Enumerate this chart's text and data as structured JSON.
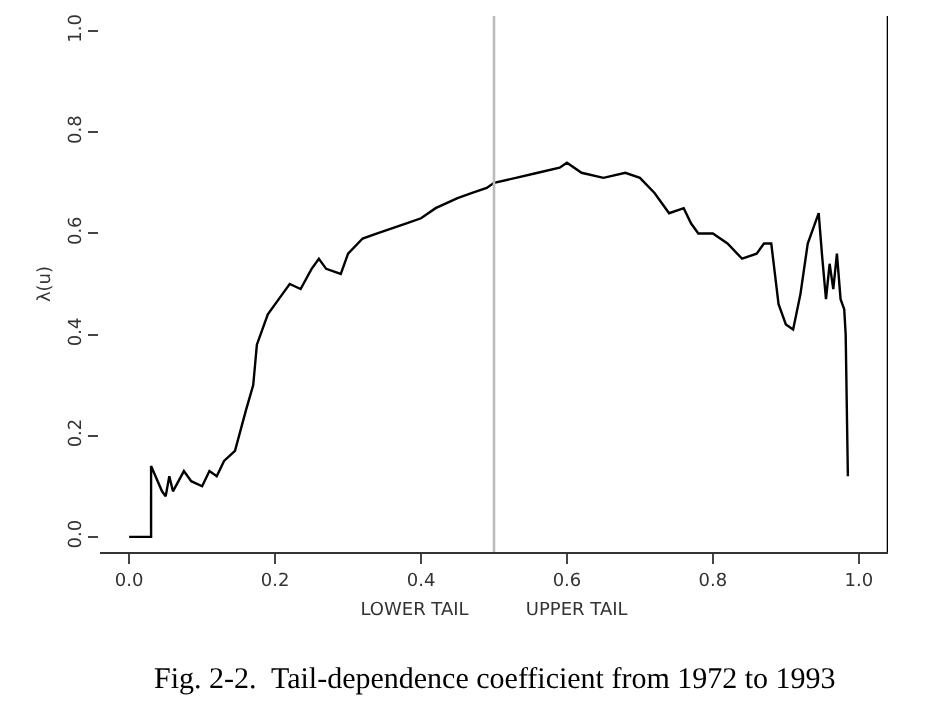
{
  "chart_data": {
    "type": "line",
    "title": "Fig. 2-2.  Tail-dependence coefficient from 1972 to 1993",
    "xlabel": "LOWER TAIL          UPPER TAIL",
    "ylabel": "λ(u)",
    "series": [
      {
        "color": "#000000",
        "x": [
          0,
          0.03,
          0.03,
          0.045,
          0.05,
          0.055,
          0.06,
          0.075,
          0.085,
          0.1,
          0.11,
          0.12,
          0.13,
          0.145,
          0.16,
          0.17,
          0.175,
          0.19,
          0.21,
          0.22,
          0.235,
          0.25,
          0.26,
          0.27,
          0.29,
          0.3,
          0.32,
          0.34,
          0.36,
          0.38,
          0.4,
          0.42,
          0.45,
          0.47,
          0.49,
          0.5,
          0.53,
          0.56,
          0.59,
          0.6,
          0.62,
          0.65,
          0.68,
          0.7,
          0.72,
          0.74,
          0.76,
          0.77,
          0.78,
          0.8,
          0.82,
          0.84,
          0.86,
          0.87,
          0.88,
          0.89,
          0.9,
          0.91,
          0.92,
          0.93,
          0.945,
          0.95,
          0.955,
          0.96,
          0.965,
          0.97,
          0.975,
          0.98,
          0.982,
          0.985
        ],
        "values": [
          0,
          0,
          0.14,
          0.09,
          0.08,
          0.12,
          0.09,
          0.13,
          0.11,
          0.1,
          0.13,
          0.12,
          0.15,
          0.17,
          0.25,
          0.3,
          0.38,
          0.44,
          0.48,
          0.5,
          0.49,
          0.53,
          0.55,
          0.53,
          0.52,
          0.56,
          0.59,
          0.6,
          0.61,
          0.62,
          0.63,
          0.65,
          0.67,
          0.68,
          0.69,
          0.7,
          0.71,
          0.72,
          0.73,
          0.74,
          0.72,
          0.71,
          0.72,
          0.71,
          0.68,
          0.64,
          0.65,
          0.62,
          0.6,
          0.6,
          0.58,
          0.55,
          0.56,
          0.58,
          0.58,
          0.46,
          0.42,
          0.41,
          0.48,
          0.58,
          0.64,
          0.55,
          0.47,
          0.54,
          0.49,
          0.56,
          0.47,
          0.45,
          0.4,
          0.12
        ]
      }
    ],
    "xlim": [
      -0.04,
      1.04
    ],
    "ylim": [
      -0.03,
      1.03
    ],
    "xticks": [
      {
        "value": 0,
        "label": "0.0"
      },
      0.2,
      0.4,
      0.6,
      0.8,
      {
        "value": 1,
        "label": "1.0"
      }
    ],
    "yticks": [
      {
        "value": 0,
        "label": "0.0"
      },
      0.2,
      0.4,
      0.6,
      0.8,
      {
        "value": 1,
        "label": "1.0"
      }
    ],
    "ref_lines": [
      {
        "axis": "x",
        "value": 0.5,
        "color": "#bbbbbb"
      },
      {
        "axis": "x",
        "value": 1.04,
        "color": "#000000"
      }
    ],
    "grid": false,
    "legend": false,
    "marker": "none",
    "line_style": "solid"
  }
}
